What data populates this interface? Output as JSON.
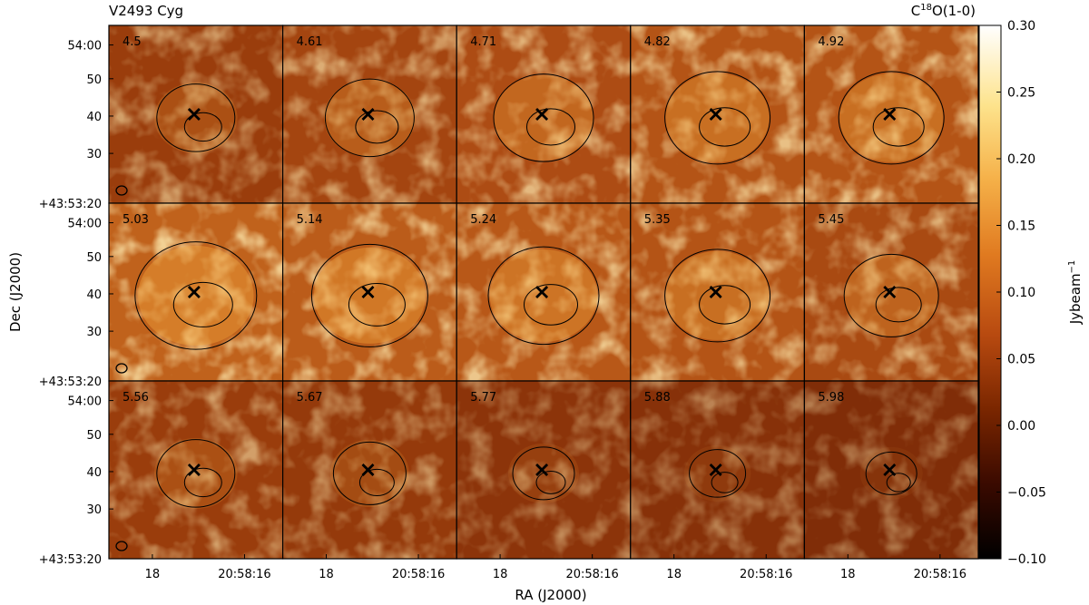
{
  "title_left": "V2493 Cyg",
  "title_right": "C",
  "title_right_sup": "18",
  "title_right_rest": "O(1-0)",
  "xlabel": "RA (J2000)",
  "ylabel": "Dec (J2000)",
  "colorbar_label": "Jybeam",
  "colorbar_label_sup": "−1",
  "colorbar_ticks": [
    "0.30",
    "0.25",
    "0.20",
    "0.15",
    "0.10",
    "0.05",
    "0.00",
    "−0.05",
    "−0.10"
  ],
  "colorbar_range": [
    -0.1,
    0.3
  ],
  "colorbar_colors": [
    "#000000",
    "#3a0a00",
    "#7a2600",
    "#b84a10",
    "#e07a20",
    "#f5b048",
    "#fde38c",
    "#ffffff"
  ],
  "y_ticks": [
    "54:00",
    "50",
    "40",
    "30",
    "+43:53:20"
  ],
  "x_ticks": [
    "18",
    "20:58:16"
  ],
  "channels": [
    "4.5",
    "4.61",
    "4.71",
    "4.82",
    "4.92",
    "5.03",
    "5.14",
    "5.24",
    "5.35",
    "5.45",
    "5.56",
    "5.67",
    "5.77",
    "5.88",
    "5.98"
  ],
  "channel_intensity": [
    0.35,
    0.45,
    0.55,
    0.6,
    0.6,
    0.75,
    0.7,
    0.65,
    0.6,
    0.5,
    0.35,
    0.3,
    0.2,
    0.15,
    0.1
  ],
  "marker": "x-marker",
  "beam": "beam-ellipse"
}
